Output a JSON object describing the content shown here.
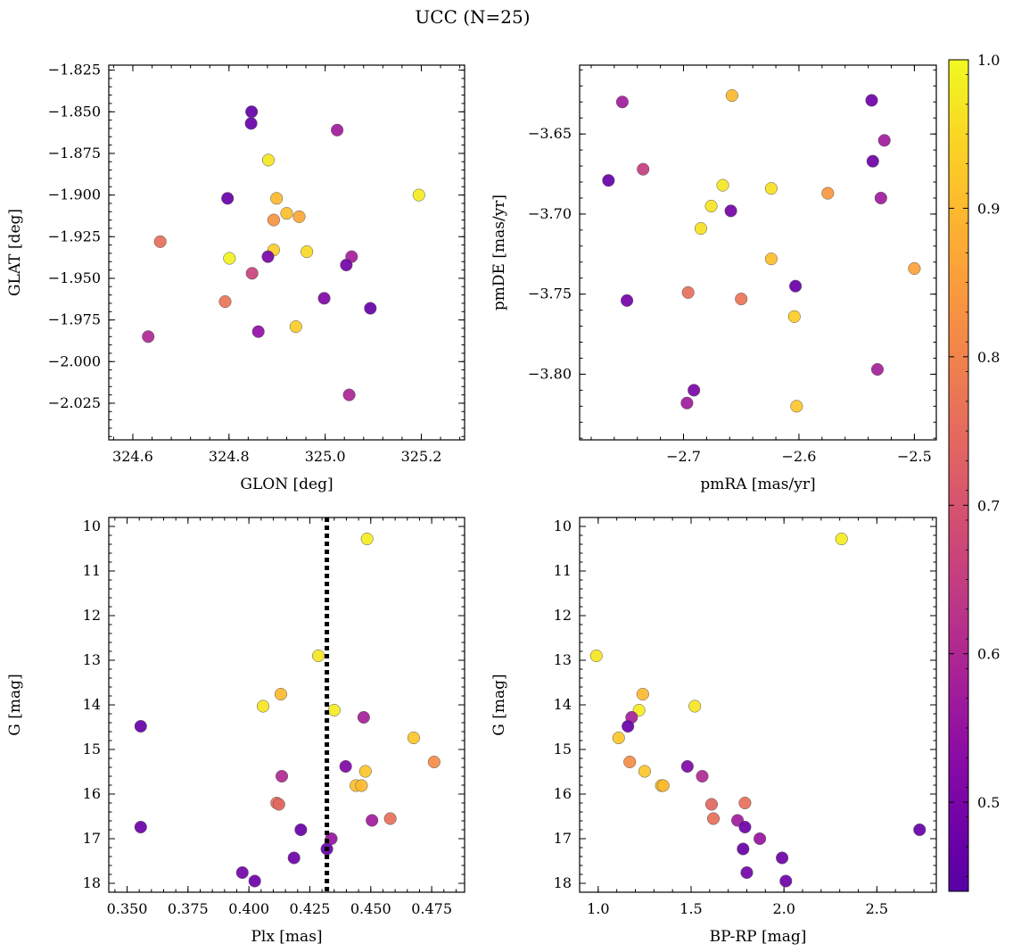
{
  "figure": {
    "title": "UCC (N=25)",
    "colorbar": {
      "range": [
        0.44,
        1.0
      ],
      "ticks": [
        0.5,
        0.6,
        0.7,
        0.8,
        0.9,
        1.0
      ],
      "tick_labels": [
        "0.5",
        "0.6",
        "0.7",
        "0.8",
        "0.9",
        "1.0"
      ],
      "colormap": "plasma"
    }
  },
  "chart_data": [
    {
      "type": "scatter",
      "panel": "top-left",
      "xlabel": "GLON [deg]",
      "ylabel": "GLAT [deg]",
      "xlim": [
        324.55,
        325.29
      ],
      "ylim": [
        -2.047,
        -1.822
      ],
      "y_inverted": false,
      "xticks": [
        324.6,
        324.8,
        325.0,
        325.2
      ],
      "xtick_labels": [
        "324.6",
        "324.8",
        "325.0",
        "325.2"
      ],
      "yticks": [
        -1.825,
        -1.85,
        -1.875,
        -1.9,
        -1.925,
        -1.95,
        -1.975,
        -2.0,
        -2.025
      ],
      "ytick_labels": [
        "−1.825",
        "−1.850",
        "−1.875",
        "−1.900",
        "−1.925",
        "−1.950",
        "−1.975",
        "−2.000",
        "−2.025"
      ],
      "points": [
        {
          "x": 324.847,
          "y": -1.85,
          "c": 0.46
        },
        {
          "x": 324.846,
          "y": -1.857,
          "c": 0.47
        },
        {
          "x": 325.025,
          "y": -1.861,
          "c": 0.57
        },
        {
          "x": 324.882,
          "y": -1.879,
          "c": 0.97
        },
        {
          "x": 324.797,
          "y": -1.902,
          "c": 0.47
        },
        {
          "x": 324.899,
          "y": -1.902,
          "c": 0.9
        },
        {
          "x": 325.195,
          "y": -1.9,
          "c": 0.98
        },
        {
          "x": 324.92,
          "y": -1.911,
          "c": 0.91
        },
        {
          "x": 324.893,
          "y": -1.915,
          "c": 0.83
        },
        {
          "x": 324.946,
          "y": -1.913,
          "c": 0.87
        },
        {
          "x": 324.657,
          "y": -1.928,
          "c": 0.76
        },
        {
          "x": 324.893,
          "y": -1.933,
          "c": 0.93
        },
        {
          "x": 324.962,
          "y": -1.934,
          "c": 0.95
        },
        {
          "x": 324.801,
          "y": -1.938,
          "c": 0.99
        },
        {
          "x": 324.881,
          "y": -1.937,
          "c": 0.5
        },
        {
          "x": 325.055,
          "y": -1.937,
          "c": 0.58
        },
        {
          "x": 325.044,
          "y": -1.942,
          "c": 0.49
        },
        {
          "x": 324.848,
          "y": -1.947,
          "c": 0.66
        },
        {
          "x": 324.998,
          "y": -1.962,
          "c": 0.51
        },
        {
          "x": 324.792,
          "y": -1.964,
          "c": 0.77
        },
        {
          "x": 325.094,
          "y": -1.968,
          "c": 0.47
        },
        {
          "x": 324.939,
          "y": -1.979,
          "c": 0.93
        },
        {
          "x": 324.861,
          "y": -1.982,
          "c": 0.54
        },
        {
          "x": 324.632,
          "y": -1.985,
          "c": 0.6
        },
        {
          "x": 325.05,
          "y": -2.02,
          "c": 0.59
        }
      ]
    },
    {
      "type": "scatter",
      "panel": "top-right",
      "xlabel": "pmRA [mas/yr]",
      "ylabel": "pmDE [mas/yr]",
      "xlim": [
        -2.79,
        -2.481
      ],
      "ylim": [
        -3.841,
        -3.607
      ],
      "y_inverted": false,
      "xticks": [
        -2.7,
        -2.6,
        -2.5
      ],
      "xtick_labels": [
        "−2.7",
        "−2.6",
        "−2.5"
      ],
      "yticks": [
        -3.65,
        -3.7,
        -3.75,
        -3.8
      ],
      "ytick_labels": [
        "−3.65",
        "−3.70",
        "−3.75",
        "−3.80"
      ],
      "points": [
        {
          "x": -2.753,
          "y": -3.63,
          "c": 0.57
        },
        {
          "x": -2.658,
          "y": -3.626,
          "c": 0.9
        },
        {
          "x": -2.537,
          "y": -3.629,
          "c": 0.48
        },
        {
          "x": -2.526,
          "y": -3.654,
          "c": 0.57
        },
        {
          "x": -2.536,
          "y": -3.667,
          "c": 0.48
        },
        {
          "x": -2.735,
          "y": -3.672,
          "c": 0.65
        },
        {
          "x": -2.765,
          "y": -3.679,
          "c": 0.47
        },
        {
          "x": -2.666,
          "y": -3.682,
          "c": 0.97
        },
        {
          "x": -2.624,
          "y": -3.684,
          "c": 0.96
        },
        {
          "x": -2.575,
          "y": -3.687,
          "c": 0.84
        },
        {
          "x": -2.529,
          "y": -3.69,
          "c": 0.57
        },
        {
          "x": -2.676,
          "y": -3.695,
          "c": 0.97
        },
        {
          "x": -2.659,
          "y": -3.698,
          "c": 0.49
        },
        {
          "x": -2.685,
          "y": -3.709,
          "c": 0.96
        },
        {
          "x": -2.624,
          "y": -3.728,
          "c": 0.91
        },
        {
          "x": -2.5,
          "y": -3.734,
          "c": 0.86
        },
        {
          "x": -2.603,
          "y": -3.745,
          "c": 0.47
        },
        {
          "x": -2.696,
          "y": -3.749,
          "c": 0.76
        },
        {
          "x": -2.65,
          "y": -3.753,
          "c": 0.77
        },
        {
          "x": -2.749,
          "y": -3.754,
          "c": 0.49
        },
        {
          "x": -2.604,
          "y": -3.764,
          "c": 0.93
        },
        {
          "x": -2.532,
          "y": -3.797,
          "c": 0.58
        },
        {
          "x": -2.691,
          "y": -3.81,
          "c": 0.5
        },
        {
          "x": -2.697,
          "y": -3.818,
          "c": 0.57
        },
        {
          "x": -2.602,
          "y": -3.82,
          "c": 0.92
        }
      ]
    },
    {
      "type": "scatter",
      "panel": "bottom-left",
      "xlabel": "Plx [mas]",
      "ylabel": "G [mag]",
      "xlim": [
        0.3425,
        0.4885
      ],
      "ylim": [
        18.2,
        9.8
      ],
      "y_inverted": true,
      "vline": {
        "x": 0.432,
        "style": "dotted"
      },
      "xticks": [
        0.35,
        0.375,
        0.4,
        0.425,
        0.45,
        0.475
      ],
      "xtick_labels": [
        "0.350",
        "0.375",
        "0.400",
        "0.425",
        "0.450",
        "0.475"
      ],
      "yticks": [
        10,
        11,
        12,
        13,
        14,
        15,
        16,
        17,
        18
      ],
      "ytick_labels": [
        "10",
        "11",
        "12",
        "13",
        "14",
        "15",
        "16",
        "17",
        "18"
      ],
      "points": [
        {
          "x": 0.4485,
          "y": 10.28,
          "c": 0.98
        },
        {
          "x": 0.4285,
          "y": 12.9,
          "c": 0.97
        },
        {
          "x": 0.4131,
          "y": 13.76,
          "c": 0.9
        },
        {
          "x": 0.4058,
          "y": 14.03,
          "c": 0.97
        },
        {
          "x": 0.435,
          "y": 14.12,
          "c": 0.98
        },
        {
          "x": 0.4471,
          "y": 14.28,
          "c": 0.58
        },
        {
          "x": 0.3556,
          "y": 14.48,
          "c": 0.47
        },
        {
          "x": 0.4676,
          "y": 14.74,
          "c": 0.92
        },
        {
          "x": 0.476,
          "y": 15.28,
          "c": 0.82
        },
        {
          "x": 0.4397,
          "y": 15.38,
          "c": 0.51
        },
        {
          "x": 0.4478,
          "y": 15.49,
          "c": 0.92
        },
        {
          "x": 0.4135,
          "y": 15.6,
          "c": 0.6
        },
        {
          "x": 0.4439,
          "y": 15.81,
          "c": 0.91
        },
        {
          "x": 0.4462,
          "y": 15.81,
          "c": 0.9
        },
        {
          "x": 0.4114,
          "y": 16.2,
          "c": 0.76
        },
        {
          "x": 0.4123,
          "y": 16.23,
          "c": 0.74
        },
        {
          "x": 0.458,
          "y": 16.55,
          "c": 0.76
        },
        {
          "x": 0.4505,
          "y": 16.59,
          "c": 0.57
        },
        {
          "x": 0.3556,
          "y": 16.74,
          "c": 0.48
        },
        {
          "x": 0.4213,
          "y": 16.8,
          "c": 0.47
        },
        {
          "x": 0.4338,
          "y": 17.0,
          "c": 0.55
        },
        {
          "x": 0.432,
          "y": 17.23,
          "c": 0.47
        },
        {
          "x": 0.4185,
          "y": 17.43,
          "c": 0.48
        },
        {
          "x": 0.3973,
          "y": 17.76,
          "c": 0.49
        },
        {
          "x": 0.4024,
          "y": 17.95,
          "c": 0.48
        }
      ]
    },
    {
      "type": "scatter",
      "panel": "bottom-right",
      "xlabel": "BP-RP [mag]",
      "ylabel": "G [mag]",
      "xlim": [
        0.9,
        2.82
      ],
      "ylim": [
        18.2,
        9.8
      ],
      "y_inverted": true,
      "xticks": [
        1.0,
        1.5,
        2.0,
        2.5
      ],
      "xtick_labels": [
        "1.0",
        "1.5",
        "2.0",
        "2.5"
      ],
      "yticks": [
        10,
        11,
        12,
        13,
        14,
        15,
        16,
        17,
        18
      ],
      "ytick_labels": [
        "10",
        "11",
        "12",
        "13",
        "14",
        "15",
        "16",
        "17",
        "18"
      ],
      "points": [
        {
          "x": 2.31,
          "y": 10.28,
          "c": 0.98
        },
        {
          "x": 0.99,
          "y": 12.9,
          "c": 0.97
        },
        {
          "x": 1.24,
          "y": 13.76,
          "c": 0.9
        },
        {
          "x": 1.52,
          "y": 14.03,
          "c": 0.97
        },
        {
          "x": 1.22,
          "y": 14.12,
          "c": 0.98
        },
        {
          "x": 1.18,
          "y": 14.28,
          "c": 0.58
        },
        {
          "x": 1.16,
          "y": 14.48,
          "c": 0.47
        },
        {
          "x": 1.11,
          "y": 14.74,
          "c": 0.92
        },
        {
          "x": 1.17,
          "y": 15.28,
          "c": 0.82
        },
        {
          "x": 1.48,
          "y": 15.38,
          "c": 0.51
        },
        {
          "x": 1.25,
          "y": 15.49,
          "c": 0.92
        },
        {
          "x": 1.56,
          "y": 15.6,
          "c": 0.6
        },
        {
          "x": 1.34,
          "y": 15.81,
          "c": 0.91
        },
        {
          "x": 1.35,
          "y": 15.81,
          "c": 0.9
        },
        {
          "x": 1.79,
          "y": 16.2,
          "c": 0.76
        },
        {
          "x": 1.61,
          "y": 16.23,
          "c": 0.74
        },
        {
          "x": 1.62,
          "y": 16.55,
          "c": 0.76
        },
        {
          "x": 1.75,
          "y": 16.59,
          "c": 0.57
        },
        {
          "x": 1.79,
          "y": 16.74,
          "c": 0.48
        },
        {
          "x": 2.73,
          "y": 16.8,
          "c": 0.47
        },
        {
          "x": 1.87,
          "y": 17.0,
          "c": 0.55
        },
        {
          "x": 1.78,
          "y": 17.23,
          "c": 0.47
        },
        {
          "x": 1.99,
          "y": 17.43,
          "c": 0.48
        },
        {
          "x": 1.8,
          "y": 17.76,
          "c": 0.49
        },
        {
          "x": 2.01,
          "y": 17.95,
          "c": 0.48
        }
      ]
    }
  ]
}
